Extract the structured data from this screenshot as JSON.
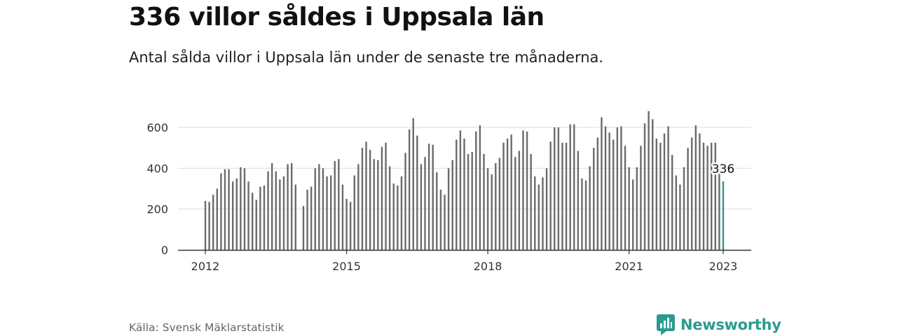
{
  "title": "336 villor såldes i Uppsala län",
  "subtitle": "Antal sålda villor i Uppsala län under de senaste tre månaderna.",
  "source": "Källa: Svensk Mäklarstatistik",
  "brand": "Newsworthy",
  "colors": {
    "bar": "#6b6b6b",
    "highlight": "#2c9a8f",
    "grid": "#dddddd",
    "axis": "#333333",
    "brand": "#2c9a8f"
  },
  "chart_data": {
    "type": "bar",
    "x_start": "2012-01",
    "x_end": "2023-01",
    "x_ticks": [
      "2012",
      "2015",
      "2018",
      "2021",
      "2023"
    ],
    "y_ticks": [
      0,
      200,
      400,
      600
    ],
    "ylim": [
      0,
      700
    ],
    "grid": true,
    "highlight_label": "336",
    "values": [
      240,
      235,
      270,
      300,
      375,
      395,
      395,
      335,
      350,
      405,
      400,
      335,
      280,
      245,
      310,
      315,
      385,
      425,
      385,
      345,
      360,
      420,
      425,
      320,
      null,
      215,
      295,
      310,
      400,
      420,
      400,
      360,
      365,
      435,
      445,
      320,
      250,
      235,
      365,
      420,
      500,
      530,
      490,
      445,
      440,
      505,
      525,
      410,
      325,
      315,
      360,
      475,
      590,
      645,
      560,
      420,
      455,
      520,
      515,
      380,
      295,
      270,
      400,
      440,
      540,
      585,
      545,
      470,
      480,
      580,
      610,
      470,
      400,
      370,
      425,
      450,
      525,
      545,
      565,
      455,
      485,
      585,
      580,
      470,
      360,
      320,
      355,
      400,
      530,
      600,
      600,
      525,
      525,
      615,
      615,
      485,
      350,
      340,
      410,
      500,
      550,
      650,
      605,
      575,
      540,
      600,
      605,
      510,
      405,
      345,
      405,
      510,
      620,
      680,
      640,
      545,
      525,
      570,
      605,
      465,
      365,
      320,
      405,
      500,
      550,
      610,
      570,
      525,
      510,
      525,
      525,
      420,
      336
    ]
  }
}
